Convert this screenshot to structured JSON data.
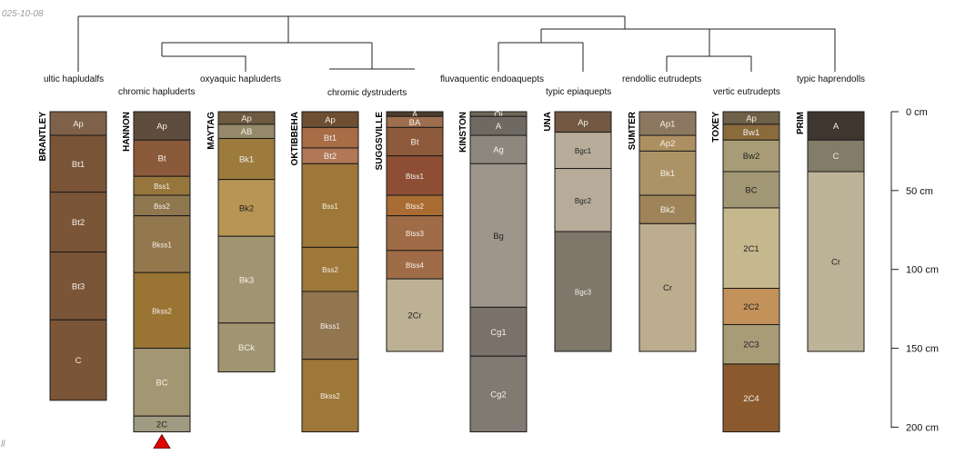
{
  "date_stamp": "025-10-08",
  "corner_mark": "ll",
  "depth_axis": {
    "unit": "cm",
    "range": [
      0,
      200
    ],
    "ticks": [
      {
        "value": 0,
        "label": "0 cm"
      },
      {
        "value": 50,
        "label": "50 cm"
      },
      {
        "value": 100,
        "label": "100 cm"
      },
      {
        "value": 150,
        "label": "150 cm"
      },
      {
        "value": 200,
        "label": "200 cm"
      }
    ]
  },
  "taxa_labels": [
    "ultic hapludalfs",
    "chromic hapluderts",
    "oxyaquic hapluderts",
    "chromic dystruderts",
    "fluvaquentic endoaquepts",
    "typic epiaquepts",
    "rendollic eutrudepts",
    "vertic eutrudepts",
    "typic haprendolls"
  ],
  "profiles": [
    {
      "name": "BRANTLEY",
      "horizons": [
        {
          "name": "Ap",
          "top": 0,
          "bottom": 15,
          "color": "#7E6148"
        },
        {
          "name": "Bt1",
          "top": 15,
          "bottom": 51,
          "color": "#7A5437"
        },
        {
          "name": "Bt2",
          "top": 51,
          "bottom": 89,
          "color": "#7A5538"
        },
        {
          "name": "Bt3",
          "top": 89,
          "bottom": 132,
          "color": "#7A5538"
        },
        {
          "name": "C",
          "top": 132,
          "bottom": 183,
          "color": "#7A5538"
        }
      ]
    },
    {
      "name": "HANNON",
      "horizons": [
        {
          "name": "Ap",
          "top": 0,
          "bottom": 18,
          "color": "#5E4D3C"
        },
        {
          "name": "Bt",
          "top": 18,
          "bottom": 41,
          "color": "#8B5A3A"
        },
        {
          "name": "Bss1",
          "top": 41,
          "bottom": 53,
          "color": "#96763C"
        },
        {
          "name": "Bss2",
          "top": 53,
          "bottom": 66,
          "color": "#8F7750"
        },
        {
          "name": "Bkss1",
          "top": 66,
          "bottom": 102,
          "color": "#93784D"
        },
        {
          "name": "Bkss2",
          "top": 102,
          "bottom": 150,
          "color": "#9A7432"
        },
        {
          "name": "BC",
          "top": 150,
          "bottom": 193,
          "color": "#A29673"
        },
        {
          "name": "2C",
          "top": 193,
          "bottom": 203,
          "color": "#A09B83"
        }
      ]
    },
    {
      "name": "MAYTAG",
      "horizons": [
        {
          "name": "Ap",
          "top": 0,
          "bottom": 8,
          "color": "#6F5A40"
        },
        {
          "name": "AB",
          "top": 8,
          "bottom": 17,
          "color": "#948A6A"
        },
        {
          "name": "Bk1",
          "top": 17,
          "bottom": 43,
          "color": "#9C7B3D"
        },
        {
          "name": "Bk2",
          "top": 43,
          "bottom": 79,
          "color": "#B89552"
        },
        {
          "name": "Bk3",
          "top": 79,
          "bottom": 134,
          "color": "#A19470"
        },
        {
          "name": "BCk",
          "top": 134,
          "bottom": 165,
          "color": "#A19470"
        }
      ]
    },
    {
      "name": "OKTIBBEHA",
      "horizons": [
        {
          "name": "Ap",
          "top": 0,
          "bottom": 10,
          "color": "#6E4F33"
        },
        {
          "name": "Bt1",
          "top": 10,
          "bottom": 23,
          "color": "#A86C47"
        },
        {
          "name": "Bt2",
          "top": 23,
          "bottom": 33,
          "color": "#B07856"
        },
        {
          "name": "Bss1",
          "top": 33,
          "bottom": 86,
          "color": "#9E7838"
        },
        {
          "name": "Bss2",
          "top": 86,
          "bottom": 114,
          "color": "#9E7838"
        },
        {
          "name": "Bkss1",
          "top": 114,
          "bottom": 157,
          "color": "#917650"
        },
        {
          "name": "Bkss2",
          "top": 157,
          "bottom": 203,
          "color": "#9E7838"
        }
      ]
    },
    {
      "name": "SUGGSVILLE",
      "horizons": [
        {
          "name": "A",
          "top": 0,
          "bottom": 3,
          "color": "#4E3E2E"
        },
        {
          "name": "BA",
          "top": 3,
          "bottom": 10,
          "color": "#9D6F4E"
        },
        {
          "name": "Bt",
          "top": 10,
          "bottom": 28,
          "color": "#8D5A3C"
        },
        {
          "name": "Btss1",
          "top": 28,
          "bottom": 53,
          "color": "#8E4E35"
        },
        {
          "name": "Btss2",
          "top": 53,
          "bottom": 66,
          "color": "#A96C33"
        },
        {
          "name": "Btss3",
          "top": 66,
          "bottom": 88,
          "color": "#A06C47"
        },
        {
          "name": "Btss4",
          "top": 88,
          "bottom": 106,
          "color": "#A06C47"
        },
        {
          "name": "2Cr",
          "top": 106,
          "bottom": 152,
          "color": "#BDB195"
        }
      ]
    },
    {
      "name": "KINSTON",
      "horizons": [
        {
          "name": "Oi",
          "top": 0,
          "bottom": 3,
          "color": "#6E6858"
        },
        {
          "name": "A",
          "top": 3,
          "bottom": 15,
          "color": "#6E6A62"
        },
        {
          "name": "Ag",
          "top": 15,
          "bottom": 33,
          "color": "#8E877D"
        },
        {
          "name": "Bg",
          "top": 33,
          "bottom": 124,
          "color": "#9E968B"
        },
        {
          "name": "Cg1",
          "top": 124,
          "bottom": 155,
          "color": "#7A726A"
        },
        {
          "name": "Cg2",
          "top": 155,
          "bottom": 203,
          "color": "#807A72"
        }
      ]
    },
    {
      "name": "UNA",
      "horizons": [
        {
          "name": "Ap",
          "top": 0,
          "bottom": 13,
          "color": "#735843"
        },
        {
          "name": "Bgc1",
          "top": 13,
          "bottom": 36,
          "color": "#B6AC99"
        },
        {
          "name": "Bgc2",
          "top": 36,
          "bottom": 76,
          "color": "#B6AC99"
        },
        {
          "name": "Bgc3",
          "top": 76,
          "bottom": 152,
          "color": "#7E776A"
        }
      ]
    },
    {
      "name": "SUMTER",
      "horizons": [
        {
          "name": "Ap1",
          "top": 0,
          "bottom": 15,
          "color": "#8C7860"
        },
        {
          "name": "Ap2",
          "top": 15,
          "bottom": 25,
          "color": "#AD9062"
        },
        {
          "name": "Bk1",
          "top": 25,
          "bottom": 53,
          "color": "#AB9366"
        },
        {
          "name": "Bk2",
          "top": 53,
          "bottom": 71,
          "color": "#9E8458"
        },
        {
          "name": "Cr",
          "top": 71,
          "bottom": 152,
          "color": "#BCAD8E"
        }
      ]
    },
    {
      "name": "TOXEY",
      "horizons": [
        {
          "name": "Ap",
          "top": 0,
          "bottom": 8,
          "color": "#6E6148"
        },
        {
          "name": "Bw1",
          "top": 8,
          "bottom": 18,
          "color": "#8A6B3C"
        },
        {
          "name": "Bw2",
          "top": 18,
          "bottom": 38,
          "color": "#A89C77"
        },
        {
          "name": "BC",
          "top": 38,
          "bottom": 61,
          "color": "#A29775"
        },
        {
          "name": "2C1",
          "top": 61,
          "bottom": 112,
          "color": "#C6B88E"
        },
        {
          "name": "2C2",
          "top": 112,
          "bottom": 135,
          "color": "#C3915A"
        },
        {
          "name": "2C3",
          "top": 135,
          "bottom": 160,
          "color": "#A89C77"
        },
        {
          "name": "2C4",
          "top": 160,
          "bottom": 203,
          "color": "#8A5A2E"
        }
      ]
    },
    {
      "name": "PRIM",
      "horizons": [
        {
          "name": "A",
          "top": 0,
          "bottom": 18,
          "color": "#3F3630"
        },
        {
          "name": "C",
          "top": 18,
          "bottom": 38,
          "color": "#837C68"
        },
        {
          "name": "Cr",
          "top": 38,
          "bottom": 152,
          "color": "#BDB399"
        }
      ]
    }
  ],
  "markers": [
    {
      "profile": "HANNON",
      "type": "triangle",
      "color": "#E00000"
    }
  ]
}
